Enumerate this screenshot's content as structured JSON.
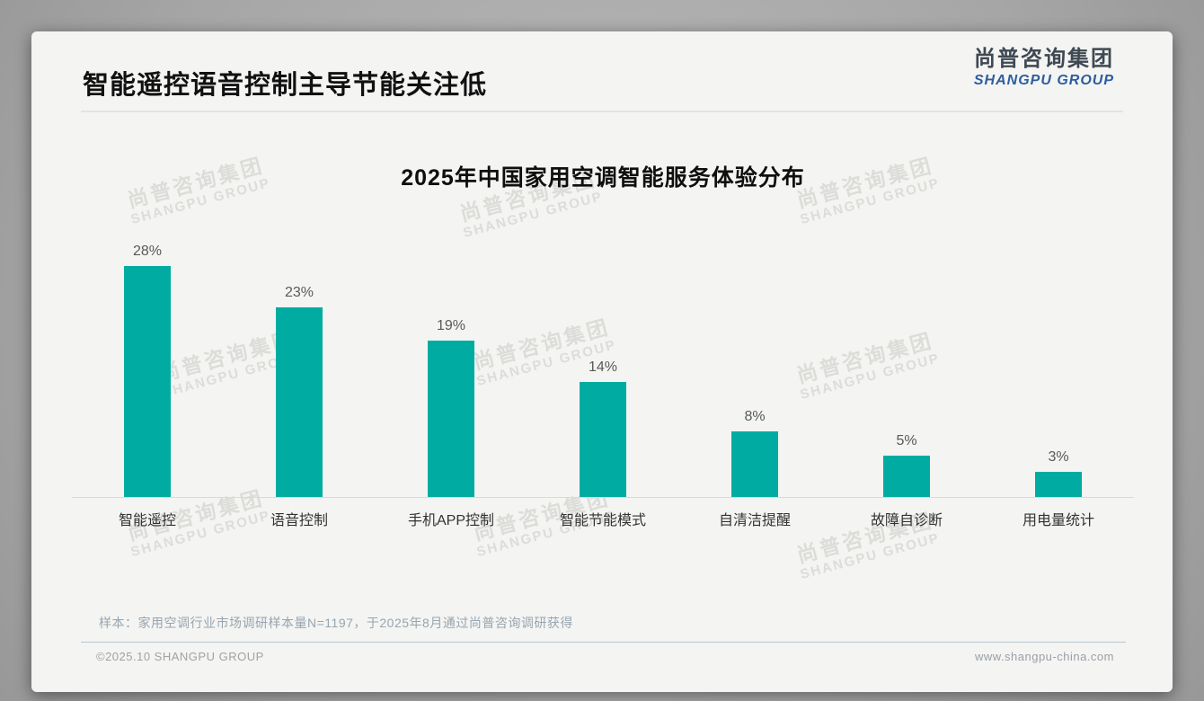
{
  "page": {
    "title": "智能遥控语音控制主导节能关注低",
    "logo": {
      "cn": "尚普咨询集团",
      "en": "SHANGPU GROUP"
    },
    "watermark": {
      "cn": "尚普咨询集团",
      "en": "SHANGPU GROUP"
    },
    "footnote": "样本：家用空调行业市场调研样本量N=1197，于2025年8月通过尚普咨询调研获得",
    "footer_left": "©2025.10 SHANGPU GROUP",
    "footer_right": "www.shangpu-china.com"
  },
  "chart_data": {
    "type": "bar",
    "title": "2025年中国家用空调智能服务体验分布",
    "categories": [
      "智能遥控",
      "语音控制",
      "手机APP控制",
      "智能节能模式",
      "自清洁提醒",
      "故障自诊断",
      "用电量统计"
    ],
    "values": [
      28,
      23,
      19,
      14,
      8,
      5,
      3
    ],
    "value_labels": [
      "28%",
      "23%",
      "19%",
      "14%",
      "8%",
      "5%",
      "3%"
    ],
    "bar_color": "#00ACA1",
    "xlabel": "",
    "ylabel": "",
    "ylim": [
      0,
      30
    ],
    "grid": false,
    "legend": false,
    "data_labels_position": "above-bar"
  }
}
